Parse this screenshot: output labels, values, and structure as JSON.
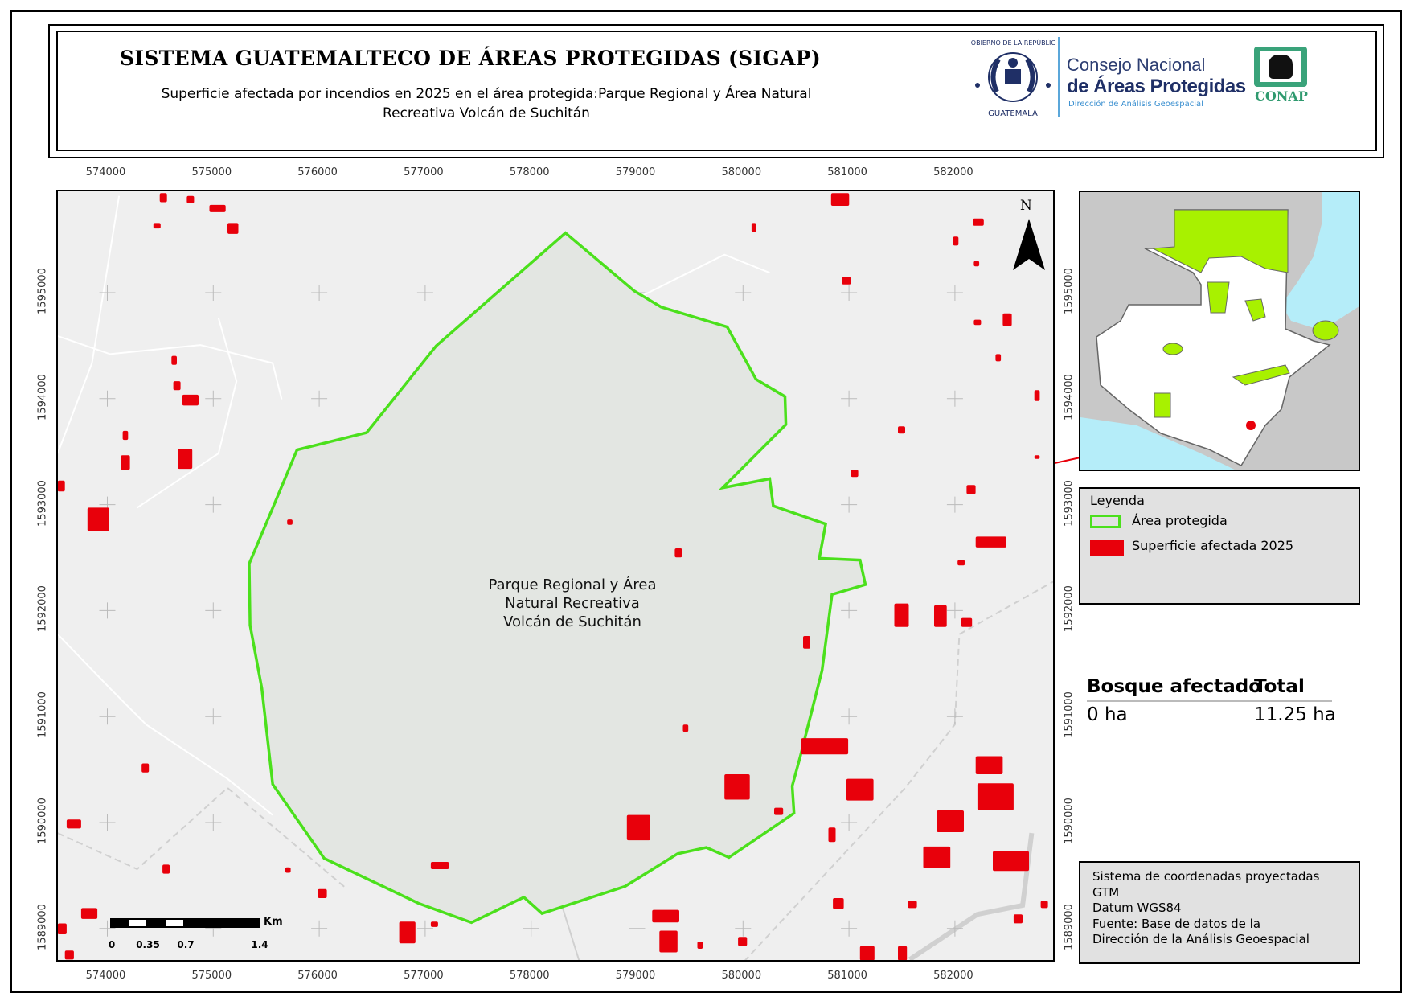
{
  "header": {
    "title": "SISTEMA GUATEMALTECO DE ÁREAS PROTEGIDAS  (SIGAP)",
    "subtitle_line1": "Superficie afectada por incendios en 2025 en el área protegida:Parque Regional y Área Natural",
    "subtitle_line2": "Recreativa Volcán de Suchitán"
  },
  "logos": {
    "seal_text_top": "GOBIERNO DE LA REPÚBLICA",
    "seal_text_bottom": "GUATEMALA",
    "consejo_line1": "Consejo Nacional",
    "consejo_line2": "de Áreas Protegidas",
    "consejo_line3": "Dirección de Análisis Geoespacial",
    "conap": "CONAP"
  },
  "map": {
    "easting_ticks": [
      "574000",
      "575000",
      "576000",
      "577000",
      "578000",
      "579000",
      "580000",
      "581000",
      "582000"
    ],
    "northing_ticks": [
      "1595000",
      "1594000",
      "1593000",
      "1592000",
      "1591000",
      "1590000",
      "1589000"
    ],
    "area_label_line1": "Parque Regional y Área",
    "area_label_line2": "Natural Recreativa",
    "area_label_line3": "Volcán de Suchitán",
    "north_label": "N",
    "scale": {
      "unit": "Km",
      "labels": [
        "0",
        "0.35",
        "0.7",
        "1.4"
      ]
    },
    "colors": {
      "protected_area_outline": "#4be01c",
      "affected": "#e8000b",
      "background": "#efefef",
      "polygon_fill": "#e3e6e2"
    }
  },
  "legend": {
    "title": "Leyenda",
    "items": [
      {
        "label": "Área protegida",
        "symbol": "outline",
        "color": "#4be01c"
      },
      {
        "label": "Superficie afectada 2025",
        "symbol": "fill",
        "color": "#e8000b"
      }
    ]
  },
  "stats": {
    "header_left": "Bosque afectado",
    "header_right": "Total",
    "value_left": "0 ha",
    "value_right": "11.25 ha"
  },
  "info": {
    "lines": [
      "Sistema de coordenadas proyectadas",
      "GTM",
      "Datum WGS84",
      "Fuente: Base de datos de la",
      "Dirección de la Análisis Geoespacial"
    ]
  }
}
